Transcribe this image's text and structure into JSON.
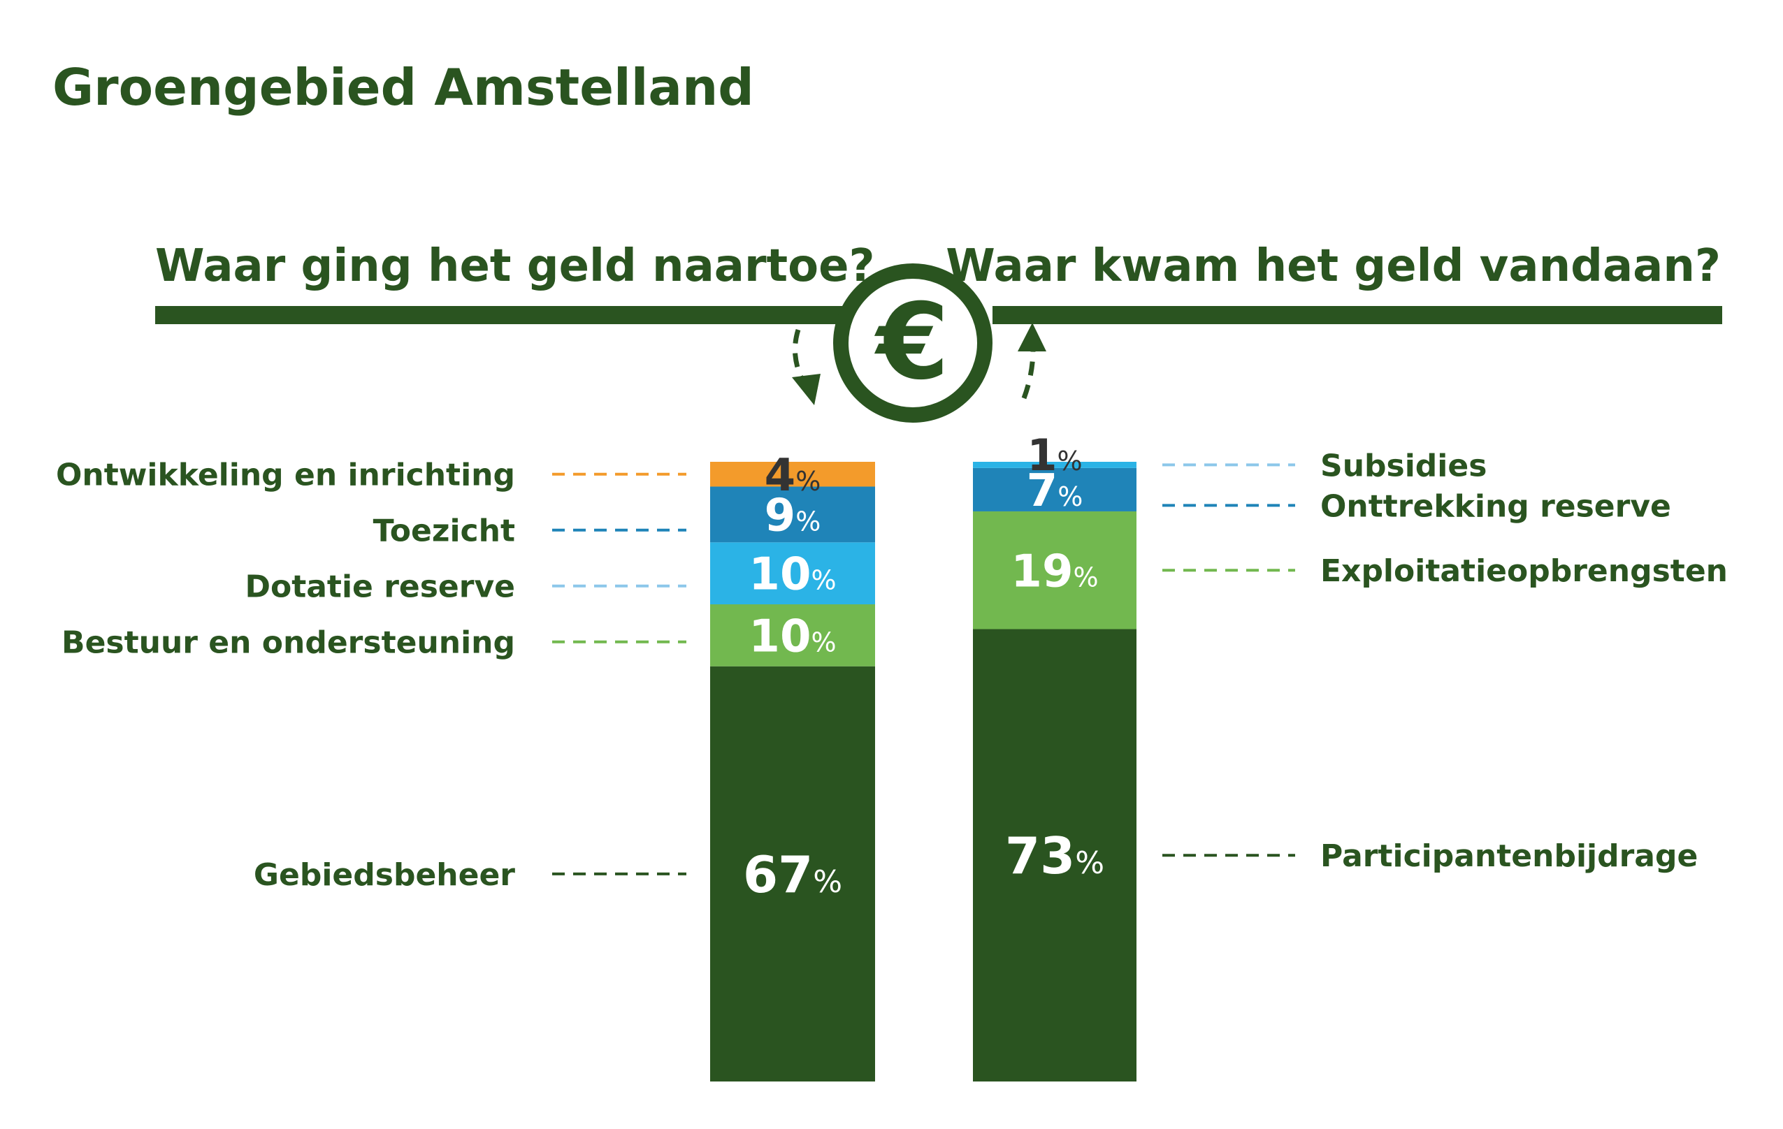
{
  "title": "Groengebied Amstelland",
  "headings": {
    "left": "Waar ging het geld naartoe?",
    "right": "Waar kwam het geld vandaan?"
  },
  "center_icon": {
    "name": "euro-icon",
    "glyph": "€"
  },
  "percent_sign": "%",
  "colors": {
    "dark_green": "#2a5420",
    "light_green": "#72b84f",
    "light_blue": "#2bb3e6",
    "mid_blue": "#1f84b8",
    "pale_blue": "#8cc7ea",
    "orange": "#f39b2b",
    "dark_text": "#333333",
    "white": "#ffffff"
  },
  "chart_data": [
    {
      "type": "bar",
      "stacked": true,
      "title": "Waar ging het geld naartoe?",
      "unit": "%",
      "segments": [
        {
          "name": "Gebiedsbeheer",
          "value": 67,
          "color": "#2a5420",
          "label_color": "#ffffff"
        },
        {
          "name": "Bestuur en ondersteuning",
          "value": 10,
          "color": "#72b84f",
          "label_color": "#ffffff"
        },
        {
          "name": "Dotatie reserve",
          "value": 10,
          "color": "#2bb3e6",
          "label_color": "#ffffff"
        },
        {
          "name": "Toezicht",
          "value": 9,
          "color": "#1f84b8",
          "label_color": "#ffffff"
        },
        {
          "name": "Ontwikkeling en inrichting",
          "value": 4,
          "color": "#f39b2b",
          "label_color": "#333333"
        }
      ]
    },
    {
      "type": "bar",
      "stacked": true,
      "title": "Waar kwam het geld vandaan?",
      "unit": "%",
      "segments": [
        {
          "name": "Participantenbijdrage",
          "value": 73,
          "color": "#2a5420",
          "label_color": "#ffffff"
        },
        {
          "name": "Exploitatieopbrengsten",
          "value": 19,
          "color": "#72b84f",
          "label_color": "#ffffff"
        },
        {
          "name": "Onttrekking reserve",
          "value": 7,
          "color": "#1f84b8",
          "label_color": "#ffffff"
        },
        {
          "name": "Subsidies",
          "value": 1,
          "color": "#2bb3e6",
          "label_color": "#333333"
        }
      ]
    }
  ]
}
